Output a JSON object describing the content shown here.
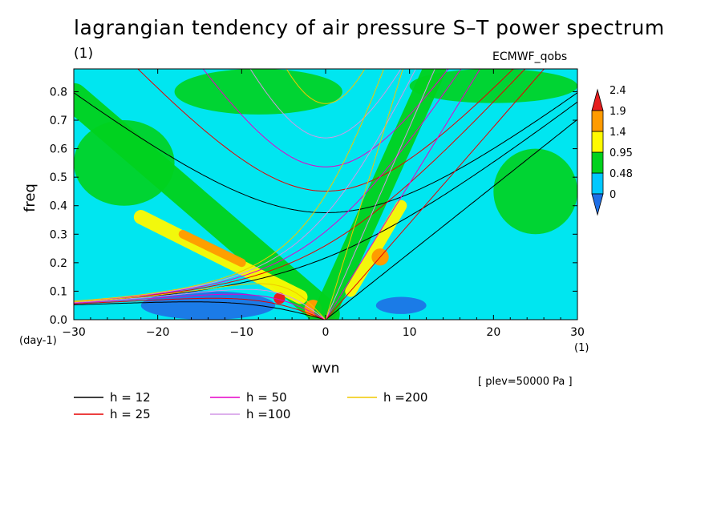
{
  "title": "lagrangian tendency of air pressure S–T power spectrum",
  "units_label": "(1)",
  "dataset_label": "ECMWF_qobs",
  "level_note": "[ plev=50000 Pa ]",
  "chart_data": {
    "type": "heatmap",
    "xlabel": "wvn",
    "ylabel": "freq",
    "x_unit_label": "(1)",
    "y_unit_label": "(day-1)",
    "xlim": [
      -30,
      30
    ],
    "ylim": [
      0,
      0.88
    ],
    "x_ticks": [
      "−30",
      "−20",
      "−10",
      "0",
      "10",
      "20",
      "30"
    ],
    "x_tick_values": [
      -30,
      -20,
      -10,
      0,
      10,
      20,
      30
    ],
    "y_ticks": [
      "0.0",
      "0.1",
      "0.2",
      "0.3",
      "0.4",
      "0.5",
      "0.6",
      "0.7",
      "0.8"
    ],
    "y_tick_values": [
      0,
      0.1,
      0.2,
      0.3,
      0.4,
      0.5,
      0.6,
      0.7,
      0.8
    ],
    "colorbar": {
      "labels": [
        "0",
        "0.48",
        "0.95",
        "1.4",
        "1.9",
        "2.4"
      ],
      "levels": [
        0,
        0.48,
        0.95,
        1.4,
        1.9,
        2.4
      ],
      "colors": [
        "#1e6fe6",
        "#00c8ff",
        "#00d21e",
        "#fffa00",
        "#ff9b00",
        "#e61e1e"
      ],
      "extend": "both"
    },
    "background_level_color": "#00e6f0",
    "features": [
      {
        "kind": "band",
        "from": [
          -30,
          0.78
        ],
        "to": [
          0,
          0.02
        ],
        "level": 2,
        "width": 0.1
      },
      {
        "kind": "band",
        "from": [
          -22,
          0.36
        ],
        "to": [
          -3,
          0.08
        ],
        "level": 3,
        "width": 0.05
      },
      {
        "kind": "band",
        "from": [
          -17,
          0.3
        ],
        "to": [
          -10,
          0.2
        ],
        "level": 4,
        "width": 0.03
      },
      {
        "kind": "spot",
        "at": [
          -5.5,
          0.075
        ],
        "level": 5,
        "r": 0.02
      },
      {
        "kind": "spot",
        "at": [
          0.5,
          0.02
        ],
        "level": 5,
        "r": 0.02
      },
      {
        "kind": "spot",
        "at": [
          -1.5,
          0.04
        ],
        "level": 4,
        "r": 0.03
      },
      {
        "kind": "band",
        "from": [
          0,
          0.03
        ],
        "to": [
          13,
          0.88
        ],
        "level": 2,
        "width": 0.08
      },
      {
        "kind": "band",
        "from": [
          3,
          0.1
        ],
        "to": [
          9,
          0.4
        ],
        "level": 3,
        "width": 0.04
      },
      {
        "kind": "spot",
        "at": [
          6.5,
          0.22
        ],
        "level": 4,
        "r": 0.03
      },
      {
        "kind": "blob",
        "at": [
          -14,
          0.05
        ],
        "level": 0,
        "rx": 8,
        "ry": 0.05
      },
      {
        "kind": "blob",
        "at": [
          9,
          0.05
        ],
        "level": 0,
        "rx": 3,
        "ry": 0.03
      },
      {
        "kind": "blob",
        "at": [
          -24,
          0.55
        ],
        "level": 2,
        "rx": 6,
        "ry": 0.15
      },
      {
        "kind": "blob",
        "at": [
          25,
          0.45
        ],
        "level": 2,
        "rx": 5,
        "ry": 0.15
      },
      {
        "kind": "blob",
        "at": [
          -8,
          0.8
        ],
        "level": 2,
        "rx": 10,
        "ry": 0.08
      },
      {
        "kind": "blob",
        "at": [
          20,
          0.82
        ],
        "level": 2,
        "rx": 10,
        "ry": 0.06
      }
    ],
    "dispersion_curves": {
      "legend": [
        {
          "label": "h = 12",
          "color": "#000000",
          "h": 12
        },
        {
          "label": "h = 25",
          "color": "#e60000",
          "h": 25
        },
        {
          "label": "h = 50",
          "color": "#e600c8",
          "h": 50
        },
        {
          "label": "h =100",
          "color": "#d296e6",
          "h": 100
        },
        {
          "label": "h =200",
          "color": "#f0c800",
          "h": 200
        }
      ]
    }
  }
}
